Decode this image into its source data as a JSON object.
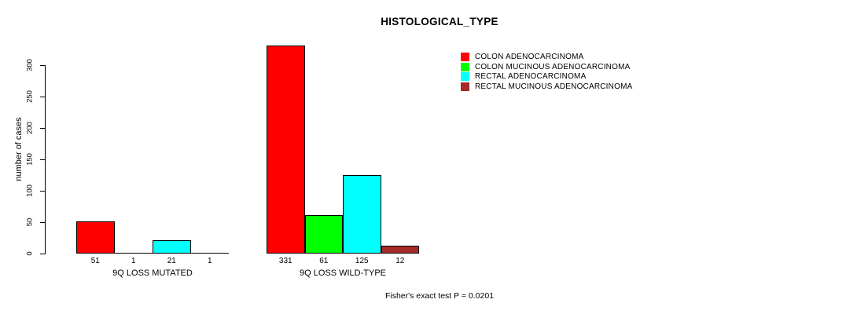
{
  "chart_data": {
    "type": "bar",
    "title": "HISTOLOGICAL_TYPE",
    "xlabel": "",
    "ylabel": "number of cases",
    "ylim": [
      0,
      331
    ],
    "yticks": [
      0,
      50,
      100,
      150,
      200,
      250,
      300
    ],
    "grid": false,
    "legend_position": "top-right",
    "series": [
      {
        "name": "COLON ADENOCARCINOMA",
        "color": "#ff0000"
      },
      {
        "name": "COLON MUCINOUS ADENOCARCINOMA",
        "color": "#00ff00"
      },
      {
        "name": "RECTAL ADENOCARCINOMA",
        "color": "#00ffff"
      },
      {
        "name": "RECTAL MUCINOUS ADENOCARCINOMA",
        "color": "#a52a2a"
      }
    ],
    "groups": [
      {
        "label": "9Q LOSS MUTATED",
        "values": [
          51,
          1,
          21,
          1
        ]
      },
      {
        "label": "9Q LOSS WILD-TYPE",
        "values": [
          331,
          61,
          125,
          12
        ]
      }
    ],
    "annotation": "Fisher's exact test P = 0.0201"
  }
}
